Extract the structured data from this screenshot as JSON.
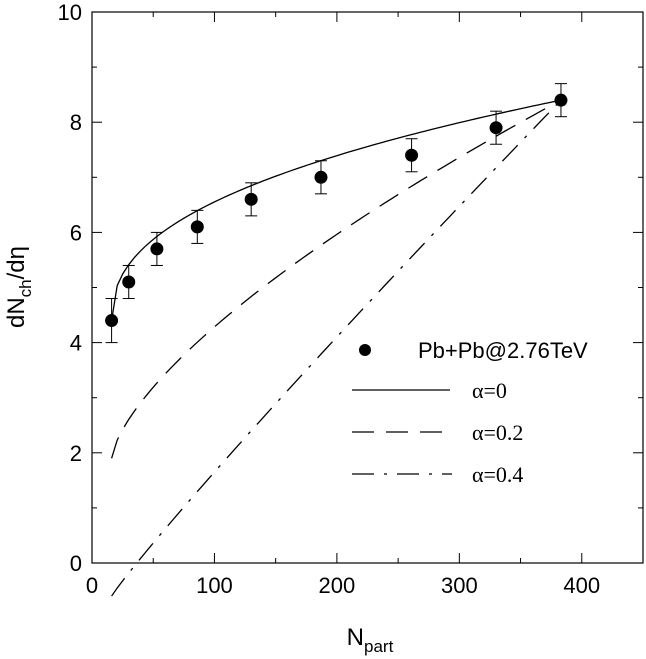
{
  "chart_data": {
    "type": "scatter",
    "title": "",
    "xlabel": {
      "main": "N",
      "sub": "part"
    },
    "ylabel": {
      "prefix": "dN",
      "sub": "ch",
      "suffix": "/dη"
    },
    "xlim": [
      0,
      450
    ],
    "ylim": [
      0,
      10
    ],
    "xticks": [
      0,
      100,
      200,
      300,
      400
    ],
    "yticks": [
      0,
      2,
      4,
      6,
      8,
      10
    ],
    "grid": false,
    "legend_position": "bottom-right",
    "data_series": {
      "name": "Pb+Pb@2.76TeV",
      "x": [
        16,
        30,
        53,
        86,
        130,
        187,
        261,
        330,
        383
      ],
      "y": [
        4.4,
        5.1,
        5.7,
        6.1,
        6.6,
        7.0,
        7.4,
        7.9,
        8.4
      ],
      "yerr": [
        0.4,
        0.3,
        0.3,
        0.3,
        0.3,
        0.3,
        0.3,
        0.3,
        0.3
      ]
    },
    "curves": [
      {
        "name": "α=0",
        "style": "solid",
        "alpha": 0,
        "x_from": 16,
        "x_to": 383
      },
      {
        "name": "α=0.2",
        "style": "long-dash",
        "alpha": 0.2,
        "x_from": 16,
        "x_to": 383
      },
      {
        "name": "α=0.4",
        "style": "dash-dot",
        "alpha": 0.4,
        "x_from": 16,
        "x_to": 383
      }
    ]
  }
}
